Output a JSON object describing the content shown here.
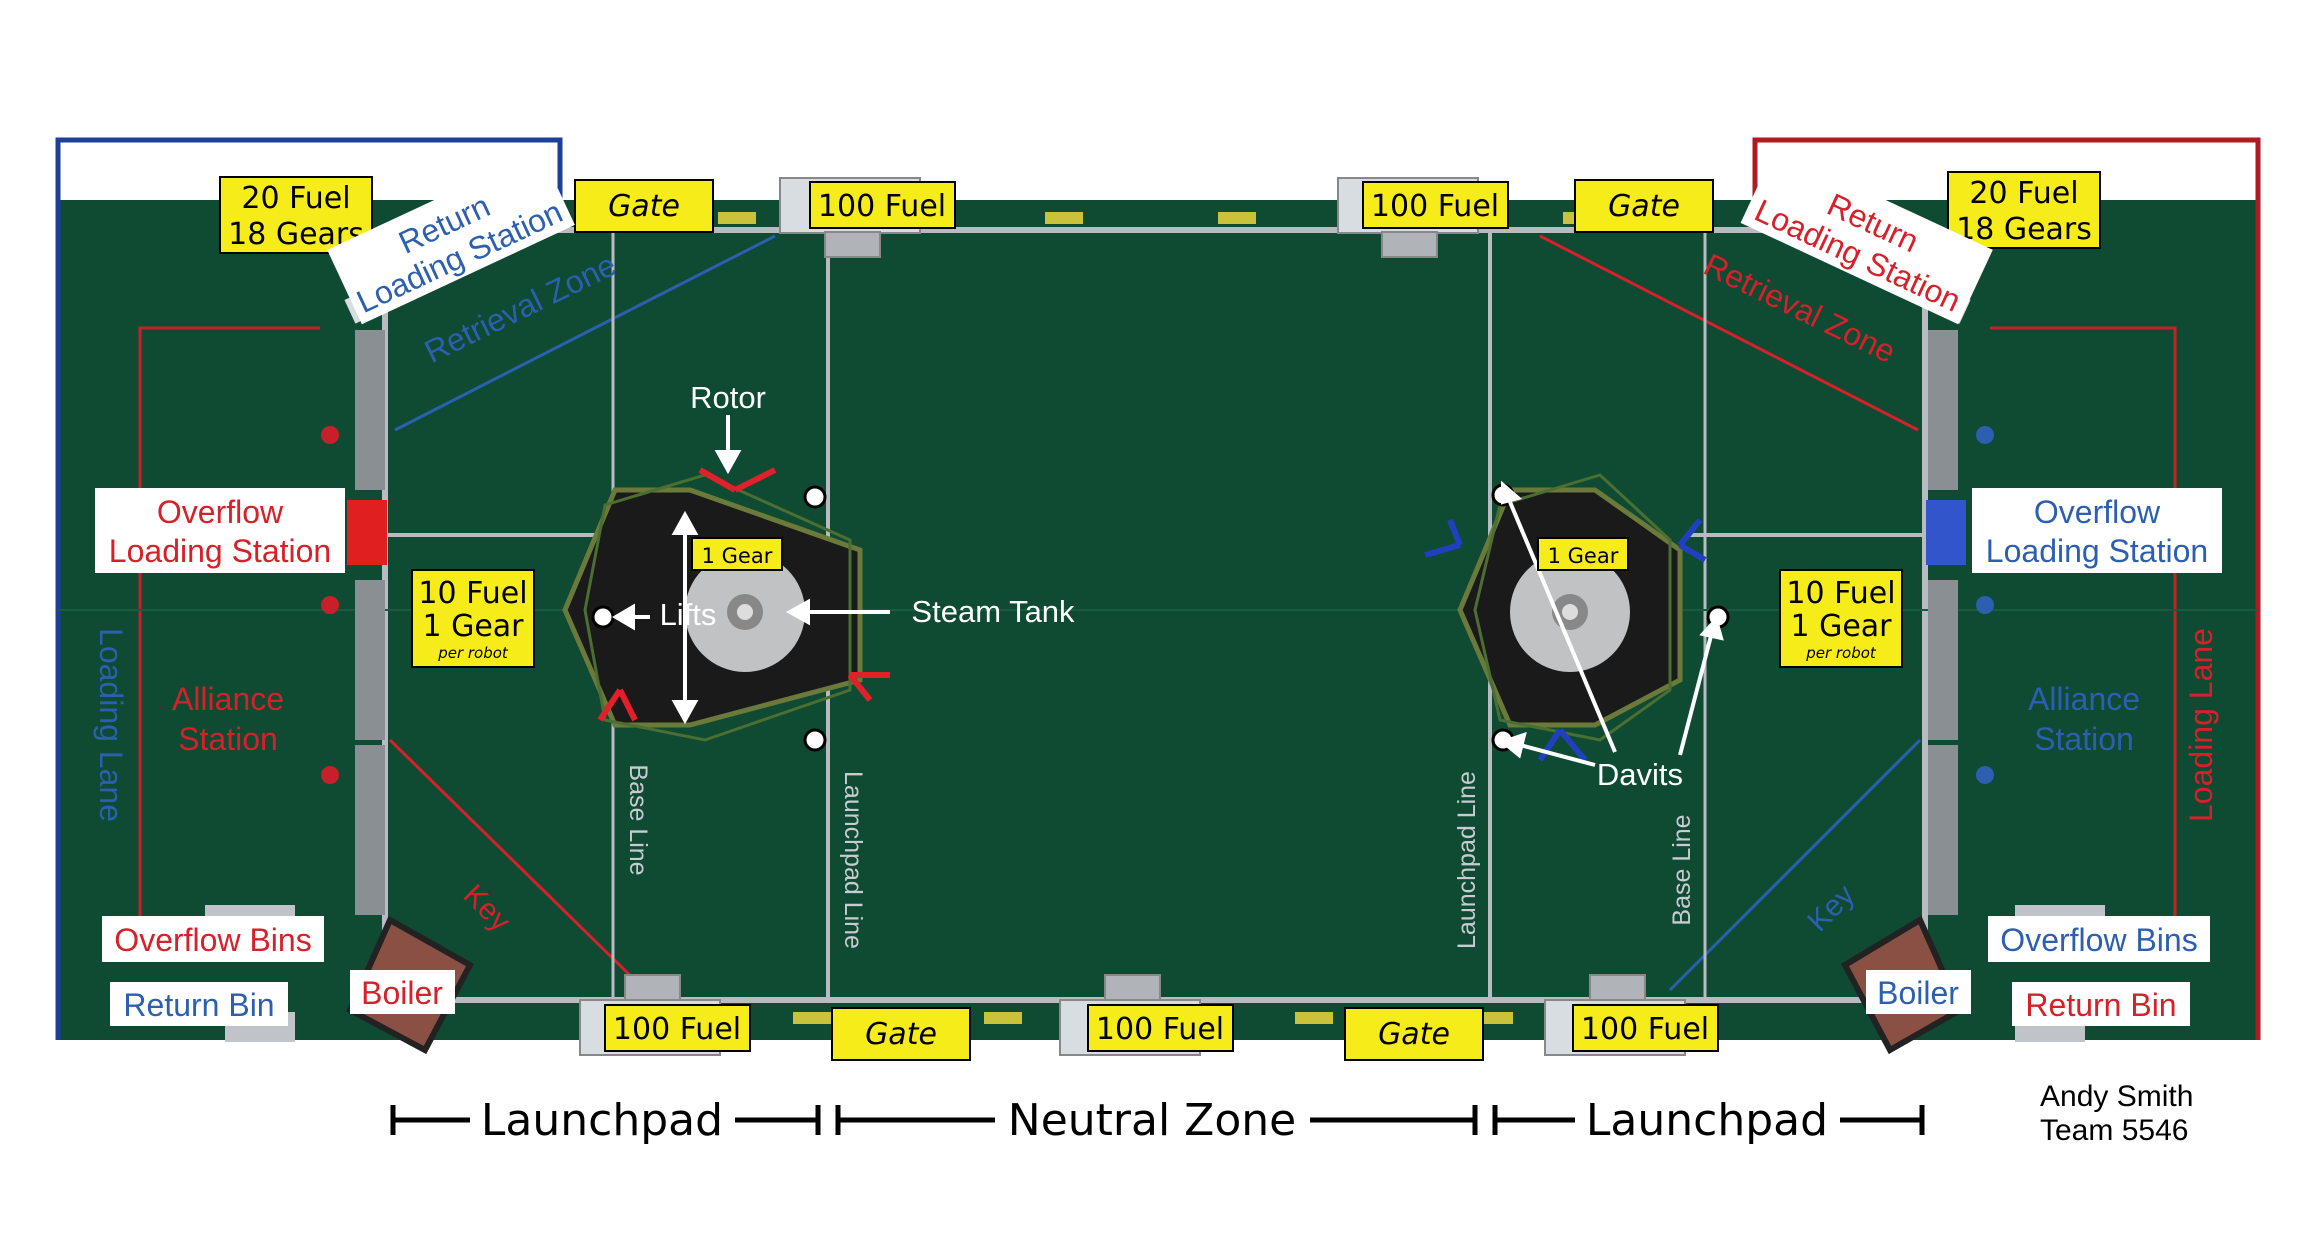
{
  "colors": {
    "field": "#0f4a33",
    "fieldDark": "#0b3a28",
    "carpetLine": "#b8bcc0",
    "blue": "#2c5fb0",
    "red": "#d6202a",
    "yellowLabel": "#f6ec1a",
    "white": "#ffffff"
  },
  "labels": {
    "fuel20_left": [
      "20 Fuel",
      "18 Gears"
    ],
    "fuel20_right": [
      "20 Fuel",
      "18 Gears"
    ],
    "return_loading_left": [
      "Return",
      "Loading Station"
    ],
    "return_loading_right": [
      "Return",
      "Loading Station"
    ],
    "gate": "Gate",
    "fuel100": "100 Fuel",
    "retrieval_zone": "Retrieval Zone",
    "overflow_loading": [
      "Overflow",
      "Loading Station"
    ],
    "alliance_station": [
      "Alliance",
      "Station"
    ],
    "loading_lane": "Loading Lane",
    "fuel10": [
      "10 Fuel",
      "1 Gear",
      "per robot"
    ],
    "one_gear": "1 Gear",
    "rotor": "Rotor",
    "lifts": "Lifts",
    "steam_tank": "Steam Tank",
    "davits": "Davits",
    "base_line": "Base Line",
    "launchpad_line": "Launchpad Line",
    "key": "Key",
    "overflow_bins": "Overflow Bins",
    "return_bin": "Return Bin",
    "boiler": "Boiler"
  },
  "zones": {
    "launchpad_left": "Launchpad",
    "neutral_zone": "Neutral Zone",
    "launchpad_right": "Launchpad"
  },
  "credit": {
    "name": "Andy Smith",
    "team": "Team 5546"
  }
}
